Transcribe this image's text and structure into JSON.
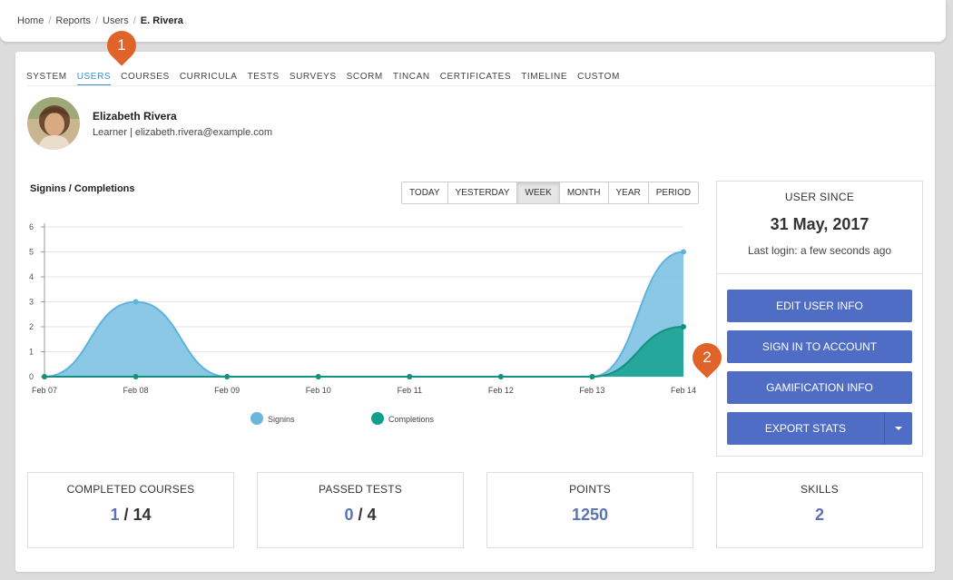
{
  "breadcrumb": {
    "items": [
      "Home",
      "Reports",
      "Users"
    ],
    "current": "E. Rivera"
  },
  "tabs": [
    {
      "label": "SYSTEM"
    },
    {
      "label": "USERS",
      "active": true
    },
    {
      "label": "COURSES"
    },
    {
      "label": "CURRICULA"
    },
    {
      "label": "TESTS"
    },
    {
      "label": "SURVEYS"
    },
    {
      "label": "SCORM"
    },
    {
      "label": "TINCAN"
    },
    {
      "label": "CERTIFICATES"
    },
    {
      "label": "TIMELINE"
    },
    {
      "label": "CUSTOM"
    }
  ],
  "user": {
    "name": "Elizabeth Rivera",
    "meta": "Learner  |  elizabeth.rivera@example.com"
  },
  "chart": {
    "title": "Signins / Completions",
    "periods": [
      "TODAY",
      "YESTERDAY",
      "WEEK",
      "MONTH",
      "YEAR",
      "PERIOD"
    ],
    "active_period": "WEEK"
  },
  "chart_data": {
    "type": "area",
    "title": "Signins / Completions",
    "categories": [
      "Feb 07",
      "Feb 08",
      "Feb 09",
      "Feb 10",
      "Feb 11",
      "Feb 12",
      "Feb 13",
      "Feb 14"
    ],
    "series": [
      {
        "name": "Signins",
        "values": [
          0,
          3,
          0,
          0,
          0,
          0,
          0,
          5
        ],
        "color": "#7dc2e3"
      },
      {
        "name": "Completions",
        "values": [
          0,
          0,
          0,
          0,
          0,
          0,
          0,
          2
        ],
        "color": "#1aa393"
      }
    ],
    "yticks": [
      0,
      1,
      2,
      3,
      4,
      5,
      6
    ],
    "ylim": [
      0,
      6
    ],
    "grid": true,
    "legend": "bottom"
  },
  "side": {
    "since_label": "USER SINCE",
    "since_date": "31 May, 2017",
    "last_login": "Last login: a few seconds ago",
    "buttons": {
      "edit": "EDIT USER INFO",
      "signin": "SIGN IN TO ACCOUNT",
      "gamification": "GAMIFICATION INFO",
      "export": "EXPORT STATS"
    }
  },
  "stats": {
    "courses": {
      "label": "COMPLETED COURSES",
      "done": "1",
      "sep": " / ",
      "total": "14"
    },
    "tests": {
      "label": "PASSED TESTS",
      "done": "0",
      "sep": " / ",
      "total": "4"
    },
    "points": {
      "label": "POINTS",
      "value": "1250"
    },
    "skills": {
      "label": "SKILLS",
      "value": "2"
    }
  },
  "markers": [
    "1",
    "2"
  ],
  "colors": {
    "accent": "#3a8fd0",
    "button": "#4f6dc4",
    "marker": "#e0642a",
    "signins": "#7dc2e3",
    "completions": "#1aa393"
  }
}
